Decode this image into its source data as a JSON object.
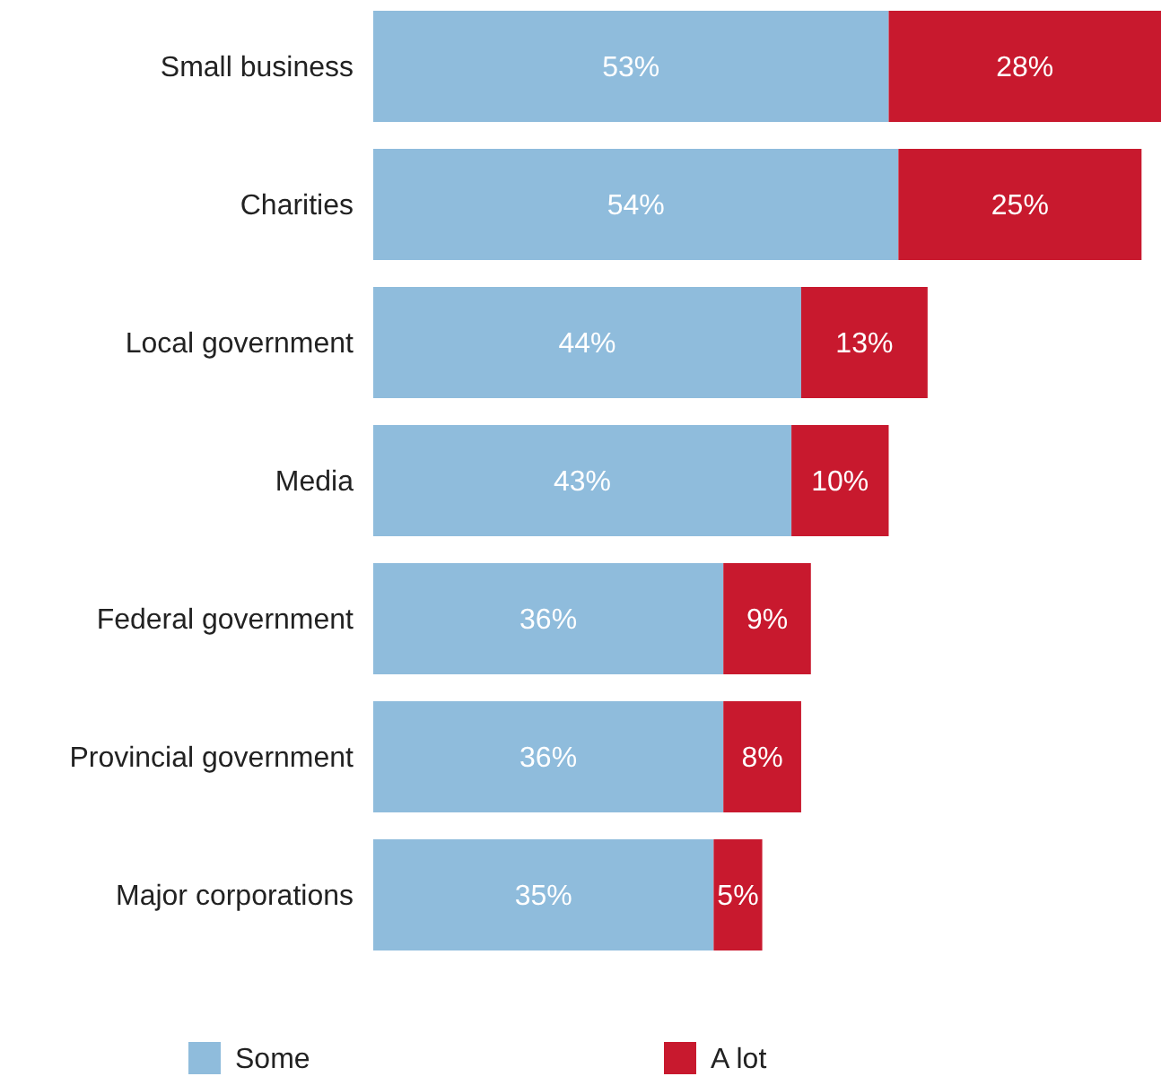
{
  "chart_data": {
    "type": "bar",
    "orientation": "horizontal",
    "stacked": true,
    "legend": "bottom",
    "categories": [
      "Small business",
      "Charities",
      "Local government",
      "Media",
      "Federal government",
      "Provincial government",
      "Major corporations"
    ],
    "series": [
      {
        "name": "Some",
        "color": "#8fbcdc",
        "values": [
          53,
          54,
          44,
          43,
          36,
          36,
          35
        ],
        "value_labels": [
          "53%",
          "54%",
          "44%",
          "43%",
          "36%",
          "36%",
          "35%"
        ]
      },
      {
        "name": "A lot",
        "color": "#c8192e",
        "values": [
          28,
          25,
          13,
          10,
          9,
          8,
          5
        ],
        "value_labels": [
          "28%",
          "25%",
          "13%",
          "10%",
          "9%",
          "8%",
          "5%"
        ]
      }
    ]
  }
}
